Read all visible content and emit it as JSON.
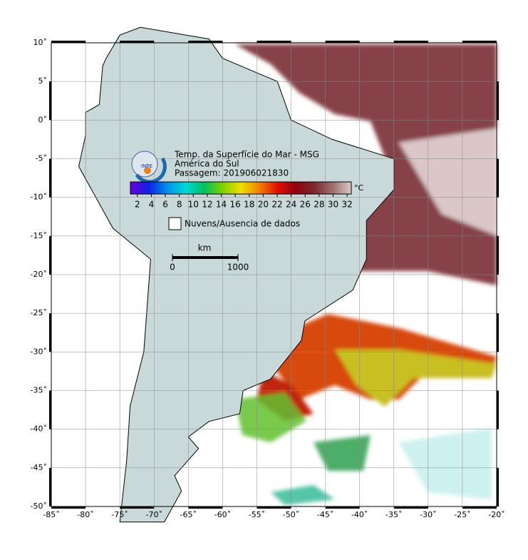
{
  "map": {
    "xlim": [
      -85,
      -20
    ],
    "ylim": [
      -50,
      10
    ],
    "xticks": [
      {
        "value": -85,
        "label": "-85˚"
      },
      {
        "value": -80,
        "label": "-80˚"
      },
      {
        "value": -75,
        "label": "-75˚"
      },
      {
        "value": -70,
        "label": "-70˚"
      },
      {
        "value": -65,
        "label": "-65˚"
      },
      {
        "value": -60,
        "label": "-60˚"
      },
      {
        "value": -55,
        "label": "-55˚"
      },
      {
        "value": -50,
        "label": "-50˚"
      },
      {
        "value": -45,
        "label": "-45˚"
      },
      {
        "value": -40,
        "label": "-40˚"
      },
      {
        "value": -35,
        "label": "-35˚"
      },
      {
        "value": -30,
        "label": "-30˚"
      },
      {
        "value": -25,
        "label": "-25˚"
      },
      {
        "value": -20,
        "label": "-20˚"
      }
    ],
    "yticks": [
      {
        "value": 10,
        "label": "10˚"
      },
      {
        "value": 5,
        "label": "5˚"
      },
      {
        "value": 0,
        "label": "0˚"
      },
      {
        "value": -5,
        "label": "-5˚"
      },
      {
        "value": -10,
        "label": "-10˚"
      },
      {
        "value": -15,
        "label": "-15˚"
      },
      {
        "value": -20,
        "label": "-20˚"
      },
      {
        "value": -25,
        "label": "-25˚"
      },
      {
        "value": -30,
        "label": "-30˚"
      },
      {
        "value": -35,
        "label": "-35˚"
      },
      {
        "value": -40,
        "label": "-40˚"
      },
      {
        "value": -45,
        "label": "-45˚"
      },
      {
        "value": -50,
        "label": "-50˚"
      }
    ],
    "grid": true,
    "land_color": "#c9d9d9"
  },
  "legend": {
    "logo": "INPE",
    "title": "Temp. da Superfície do Mar - MSG",
    "region": "América do Sul",
    "pass": "Passagem: 201906021830",
    "colorbar": {
      "lim": [
        1,
        32.6
      ],
      "ticks": [
        2,
        4,
        6,
        8,
        10,
        12,
        14,
        16,
        18,
        20,
        22,
        24,
        26,
        28,
        30,
        32
      ],
      "unit": "°C",
      "colors": [
        "#6a00d8",
        "#1020e8",
        "#0090e8",
        "#00d8d8",
        "#00c060",
        "#80d000",
        "#f0e000",
        "#f08000",
        "#e01000",
        "#900010",
        "#7a2a30",
        "#a07070",
        "#d8c8c8"
      ]
    },
    "clouds": "Nuvens/Ausencia de dados",
    "scale": {
      "unit": "km",
      "ticks": [
        0,
        1000
      ]
    }
  }
}
